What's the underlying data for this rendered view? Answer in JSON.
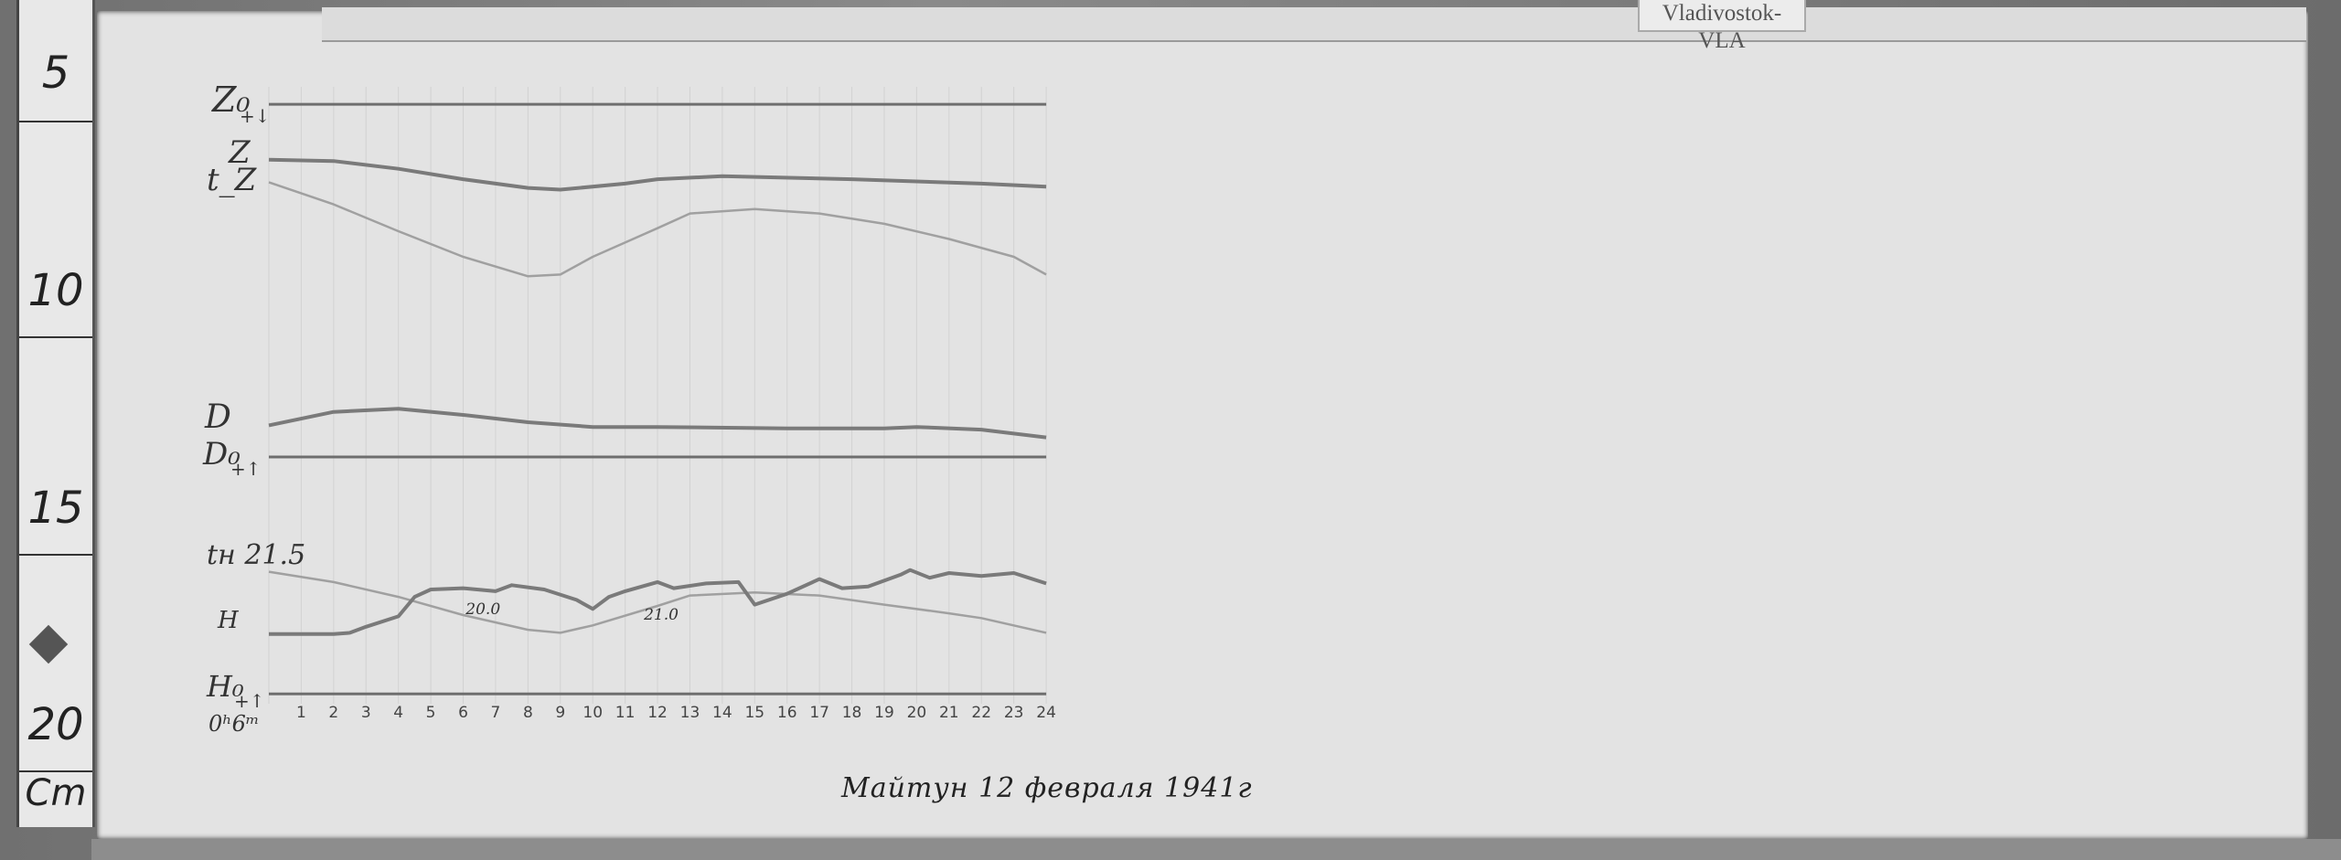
{
  "station_label": "Vladivostok-VLA",
  "caption": "Майтун  12 февраля 1941г",
  "ruler": {
    "ticks": [
      "5",
      "10",
      "15",
      "20"
    ],
    "unit": "Cm"
  },
  "colors": {
    "paper": "#e3e3e3",
    "trace": "#7a7a7a",
    "baseline": "#6e6e6e",
    "temp_trace": "#a0a0a0"
  },
  "chart_data": {
    "type": "line",
    "title": "",
    "xlabel": "",
    "ylabel": "",
    "x_unit": "hour",
    "y_unit": "cm (ruler scale)",
    "xlim": [
      0,
      24
    ],
    "x_ticks": [
      "1",
      "2",
      "3",
      "4",
      "5",
      "6",
      "7",
      "8",
      "9",
      "10",
      "11",
      "12",
      "13",
      "14",
      "15",
      "16",
      "17",
      "18",
      "19",
      "20",
      "21",
      "22",
      "23",
      "24"
    ],
    "start_label": "0ʰ6ᵐ",
    "trace_labels": [
      {
        "text": "Z₀",
        "sign": "+↓"
      },
      {
        "text": "Z",
        "sign": ""
      },
      {
        "text": "t_Z",
        "sign": ""
      },
      {
        "text": "D",
        "sign": ""
      },
      {
        "text": "D₀",
        "sign": "+↑"
      },
      {
        "text": "tн 21.5",
        "sign": ""
      },
      {
        "text": "H",
        "sign": ""
      },
      {
        "text": "H₀",
        "sign": "+↑"
      }
    ],
    "annotations": [
      {
        "text": "20.0",
        "x": 6.5
      },
      {
        "text": "21.0",
        "x": 12.0
      }
    ],
    "series": [
      {
        "key": "Z0",
        "kind": "baseline",
        "points": [
          [
            0,
            5.34
          ],
          [
            24,
            5.34
          ]
        ]
      },
      {
        "key": "Z",
        "kind": "trace",
        "points": [
          [
            0,
            6.62
          ],
          [
            2,
            6.65
          ],
          [
            4,
            6.83
          ],
          [
            6,
            7.07
          ],
          [
            8,
            7.27
          ],
          [
            9,
            7.31
          ],
          [
            11,
            7.17
          ],
          [
            12,
            7.07
          ],
          [
            14,
            7.0
          ],
          [
            18,
            7.07
          ],
          [
            22,
            7.17
          ],
          [
            24,
            7.24
          ]
        ]
      },
      {
        "key": "tZ",
        "kind": "temp",
        "points": [
          [
            0,
            7.14
          ],
          [
            2,
            7.65
          ],
          [
            4,
            8.27
          ],
          [
            6,
            8.86
          ],
          [
            8,
            9.31
          ],
          [
            9,
            9.27
          ],
          [
            10,
            8.86
          ],
          [
            12,
            8.2
          ],
          [
            13,
            7.86
          ],
          [
            15,
            7.76
          ],
          [
            17,
            7.86
          ],
          [
            19,
            8.1
          ],
          [
            21,
            8.45
          ],
          [
            23,
            8.86
          ],
          [
            24,
            9.27
          ]
        ]
      },
      {
        "key": "D",
        "kind": "trace",
        "points": [
          [
            0,
            12.75
          ],
          [
            2,
            12.44
          ],
          [
            4,
            12.37
          ],
          [
            6,
            12.51
          ],
          [
            8,
            12.68
          ],
          [
            10,
            12.79
          ],
          [
            12,
            12.79
          ],
          [
            16,
            12.82
          ],
          [
            19,
            12.82
          ],
          [
            20,
            12.79
          ],
          [
            22,
            12.85
          ],
          [
            24,
            13.03
          ]
        ]
      },
      {
        "key": "D0",
        "kind": "baseline",
        "points": [
          [
            0,
            13.48
          ],
          [
            24,
            13.48
          ]
        ]
      },
      {
        "key": "tH",
        "kind": "temp",
        "points": [
          [
            0,
            16.13
          ],
          [
            2,
            16.37
          ],
          [
            4,
            16.71
          ],
          [
            6,
            17.13
          ],
          [
            8,
            17.47
          ],
          [
            9,
            17.54
          ],
          [
            10,
            17.37
          ],
          [
            12,
            16.92
          ],
          [
            13,
            16.68
          ],
          [
            15,
            16.61
          ],
          [
            17,
            16.68
          ],
          [
            19,
            16.89
          ],
          [
            21,
            17.09
          ],
          [
            22,
            17.2
          ],
          [
            24,
            17.54
          ]
        ]
      },
      {
        "key": "H",
        "kind": "trace",
        "points": [
          [
            0,
            17.57
          ],
          [
            2,
            17.57
          ],
          [
            2.5,
            17.54
          ],
          [
            3,
            17.4
          ],
          [
            4,
            17.16
          ],
          [
            4.5,
            16.71
          ],
          [
            5,
            16.54
          ],
          [
            6,
            16.51
          ],
          [
            7,
            16.58
          ],
          [
            7.5,
            16.44
          ],
          [
            8.5,
            16.54
          ],
          [
            9.5,
            16.78
          ],
          [
            10,
            16.99
          ],
          [
            10.5,
            16.71
          ],
          [
            11,
            16.58
          ],
          [
            12,
            16.37
          ],
          [
            12.5,
            16.51
          ],
          [
            13.5,
            16.4
          ],
          [
            14.5,
            16.37
          ],
          [
            15,
            16.89
          ],
          [
            16,
            16.64
          ],
          [
            17,
            16.3
          ],
          [
            17.7,
            16.51
          ],
          [
            18.5,
            16.47
          ],
          [
            19.5,
            16.2
          ],
          [
            19.8,
            16.09
          ],
          [
            20.4,
            16.27
          ],
          [
            21,
            16.16
          ],
          [
            22,
            16.23
          ],
          [
            23,
            16.16
          ],
          [
            24,
            16.4
          ]
        ]
      },
      {
        "key": "H0",
        "kind": "baseline",
        "points": [
          [
            0,
            18.95
          ],
          [
            24,
            18.95
          ]
        ]
      }
    ]
  }
}
